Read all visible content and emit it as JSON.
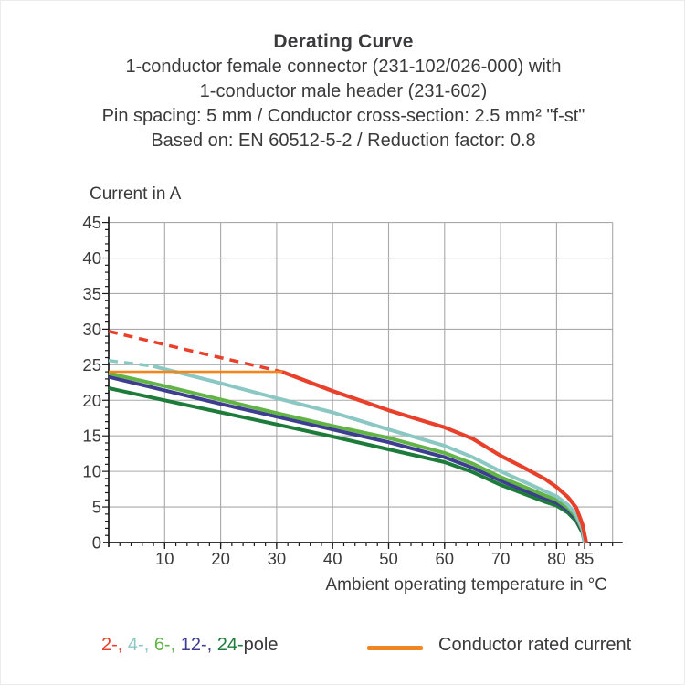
{
  "header": {
    "title": "Derating Curve",
    "line1": "1-conductor female connector (231-102/026-000) with",
    "line2": "1-conductor male header (231-602)",
    "line3": "Pin spacing: 5 mm / Conductor cross-section: 2.5 mm² \"f-st\"",
    "line4": "Based on: EN 60512-5-2 / Reduction factor: 0.8"
  },
  "colors": {
    "text": "#3a3a3c",
    "axis": "#1a1a1a",
    "grid": "#a9a9a9",
    "pole2": "#e8402a",
    "pole4": "#8cc8c3",
    "pole6": "#63b446",
    "pole12": "#3e3e90",
    "pole24": "#1d7c3a",
    "rated": "#f0861f"
  },
  "chart_data": {
    "type": "line",
    "title": "Derating Curve",
    "xlabel": "Ambient operating temperature in °C",
    "ylabel": "Current in A",
    "xlim": [
      0,
      90
    ],
    "ylim": [
      0,
      45
    ],
    "grid": true,
    "x_ticks_labeled": [
      10,
      20,
      30,
      40,
      50,
      60,
      70,
      80,
      85
    ],
    "y_ticks_labeled": [
      0,
      5,
      10,
      15,
      20,
      25,
      30,
      35,
      40,
      45
    ],
    "series": [
      {
        "name": "24-pole",
        "color": "#1d7c3a",
        "style": "solid",
        "width": 4,
        "points": [
          [
            0,
            21.7
          ],
          [
            10,
            20.0
          ],
          [
            20,
            18.3
          ],
          [
            30,
            16.6
          ],
          [
            40,
            14.9
          ],
          [
            50,
            13.1
          ],
          [
            60,
            11.3
          ],
          [
            65,
            9.9
          ],
          [
            70,
            8.1
          ],
          [
            74,
            6.9
          ],
          [
            78,
            5.7
          ],
          [
            80,
            5.2
          ],
          [
            82,
            4.2
          ],
          [
            83.5,
            3.0
          ],
          [
            84.6,
            1.4
          ],
          [
            85,
            0
          ]
        ]
      },
      {
        "name": "12-pole",
        "color": "#3e3e90",
        "style": "solid",
        "width": 4,
        "points": [
          [
            0,
            23.3
          ],
          [
            10,
            21.4
          ],
          [
            20,
            19.5
          ],
          [
            30,
            17.7
          ],
          [
            40,
            15.9
          ],
          [
            50,
            14.1
          ],
          [
            60,
            12.0
          ],
          [
            65,
            10.5
          ],
          [
            70,
            8.7
          ],
          [
            74,
            7.4
          ],
          [
            78,
            6.2
          ],
          [
            80,
            5.6
          ],
          [
            82,
            4.6
          ],
          [
            83.5,
            3.3
          ],
          [
            84.6,
            1.6
          ],
          [
            85,
            0
          ]
        ]
      },
      {
        "name": "6-pole",
        "color": "#63b446",
        "style": "solid",
        "width": 4,
        "points": [
          [
            0,
            23.8
          ],
          [
            10,
            22.0
          ],
          [
            20,
            20.1
          ],
          [
            30,
            18.2
          ],
          [
            40,
            16.4
          ],
          [
            50,
            14.7
          ],
          [
            60,
            12.6
          ],
          [
            65,
            11.1
          ],
          [
            70,
            9.2
          ],
          [
            74,
            7.9
          ],
          [
            78,
            6.6
          ],
          [
            80,
            6.0
          ],
          [
            82,
            4.9
          ],
          [
            83.5,
            3.6
          ],
          [
            84.6,
            1.8
          ],
          [
            85,
            0
          ]
        ]
      },
      {
        "name": "4-pole-dashed",
        "color": "#8cc8c3",
        "style": "dashed",
        "width": 3.5,
        "points": [
          [
            0,
            25.6
          ],
          [
            8,
            24.8
          ]
        ]
      },
      {
        "name": "4-pole",
        "color": "#8cc8c3",
        "style": "solid",
        "width": 4,
        "points": [
          [
            8,
            24.8
          ],
          [
            15,
            23.4
          ],
          [
            20,
            22.4
          ],
          [
            30,
            20.3
          ],
          [
            40,
            18.3
          ],
          [
            50,
            15.9
          ],
          [
            60,
            13.6
          ],
          [
            65,
            12.0
          ],
          [
            70,
            10.0
          ],
          [
            74,
            8.6
          ],
          [
            78,
            7.2
          ],
          [
            80,
            6.5
          ],
          [
            82,
            5.3
          ],
          [
            83.5,
            3.9
          ],
          [
            84.6,
            2.0
          ],
          [
            85,
            0
          ]
        ]
      },
      {
        "name": "2-pole-dashed",
        "color": "#e8402a",
        "style": "dashed",
        "width": 3.5,
        "points": [
          [
            0,
            29.7
          ],
          [
            15,
            26.9
          ],
          [
            31,
            24.0
          ]
        ]
      },
      {
        "name": "2-pole",
        "color": "#e8402a",
        "style": "solid",
        "width": 4.2,
        "points": [
          [
            31,
            24.0
          ],
          [
            40,
            21.3
          ],
          [
            50,
            18.6
          ],
          [
            57,
            16.9
          ],
          [
            60,
            16.2
          ],
          [
            65,
            14.6
          ],
          [
            70,
            12.2
          ],
          [
            74,
            10.6
          ],
          [
            78,
            8.9
          ],
          [
            80,
            7.8
          ],
          [
            82,
            6.4
          ],
          [
            83.5,
            4.9
          ],
          [
            84.6,
            2.6
          ],
          [
            85.3,
            0
          ]
        ]
      },
      {
        "name": "conductor-rated-current",
        "color": "#f0861f",
        "style": "solid",
        "width": 2.6,
        "points": [
          [
            0,
            24
          ],
          [
            31,
            24
          ]
        ]
      }
    ]
  },
  "legend": {
    "pole_tokens": [
      {
        "label": "2-, ",
        "color": "#e8402a"
      },
      {
        "label": "4-, ",
        "color": "#8cc8c3"
      },
      {
        "label": "6-, ",
        "color": "#63b446"
      },
      {
        "label": "12-, ",
        "color": "#3e3e90"
      },
      {
        "label": "24-",
        "color": "#1d7c3a"
      }
    ],
    "pole_suffix": "pole",
    "rated_label": "Conductor rated current",
    "rated_color": "#f0861f"
  }
}
